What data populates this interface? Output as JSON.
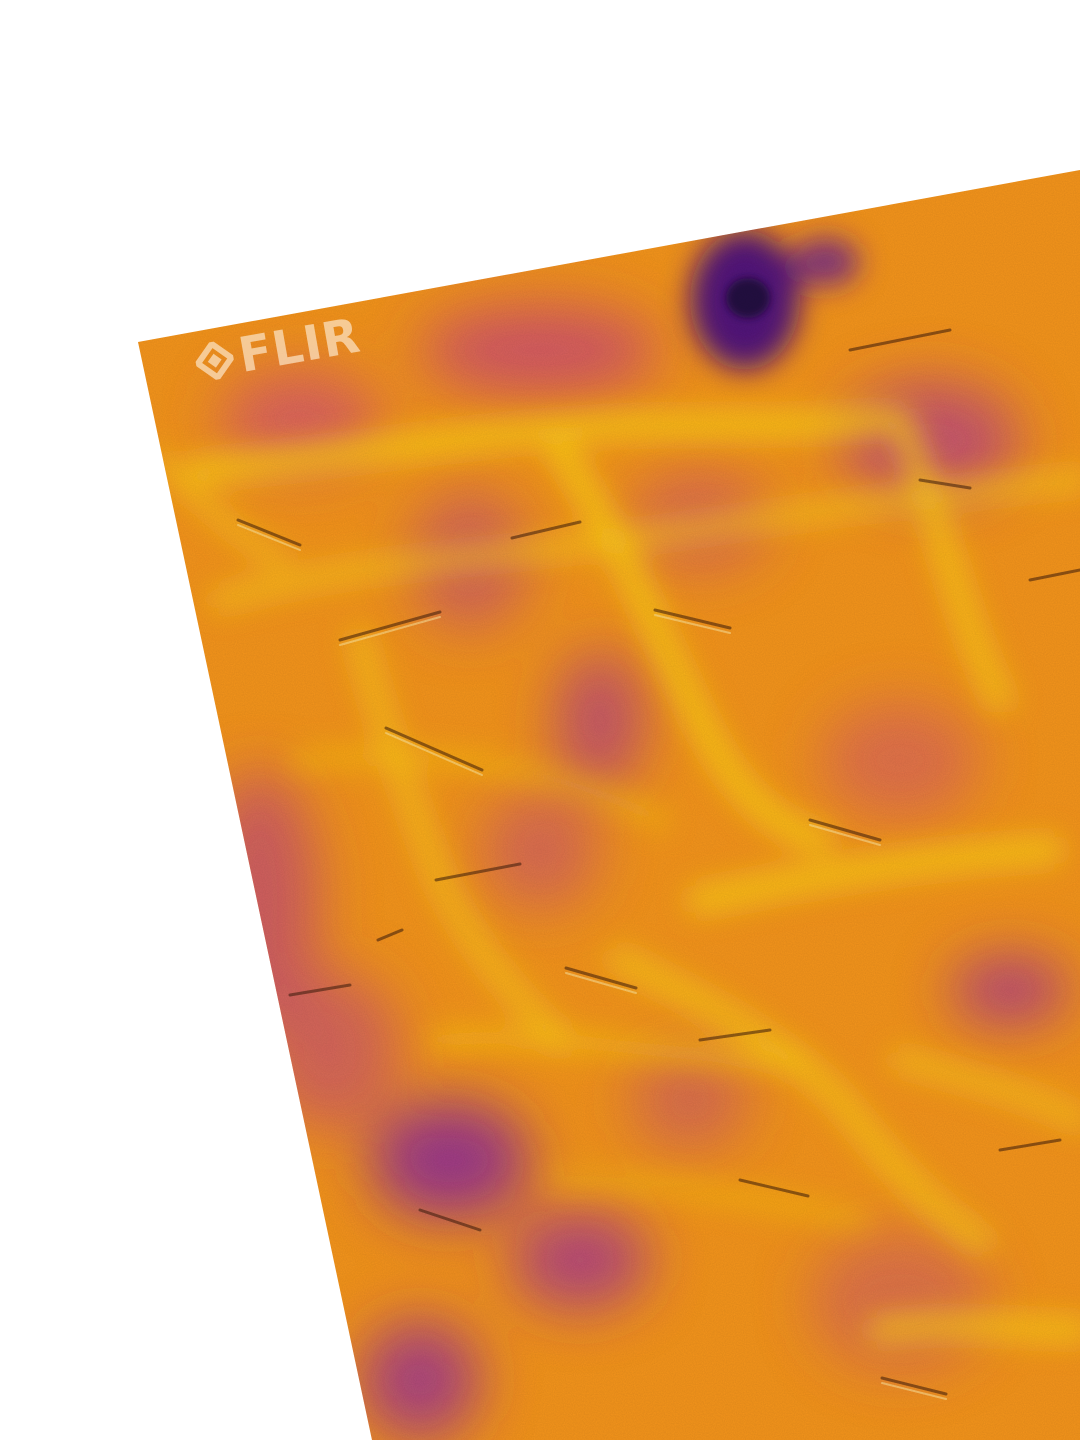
{
  "image": {
    "subject": "thermal-camera-image",
    "palette": "iron",
    "colors": {
      "background": "#ffffff",
      "base": "#f79a1a",
      "warm": "#ffd21a",
      "cool": "#b0308c",
      "cold": "#4a1280",
      "coldest": "#1c0a3c"
    }
  },
  "logo": {
    "text": "FLIR",
    "icon": "flir-diamond-icon"
  }
}
